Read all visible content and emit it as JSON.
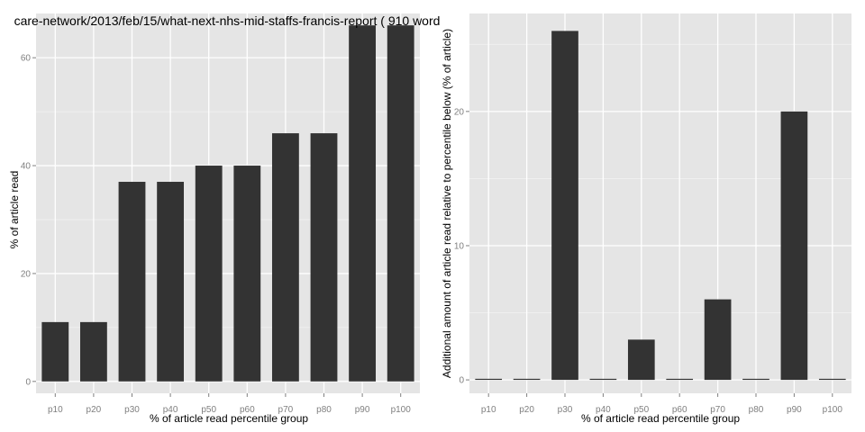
{
  "colors": {
    "panel_bg": "#e5e5e5",
    "grid_major": "#ffffff",
    "grid_minor": "#f2f2f2",
    "bar": "#333333",
    "tick_text": "#7f7f7f",
    "label_text": "#000000"
  },
  "chart_data": [
    {
      "type": "bar",
      "title": "care-network/2013/feb/15/what-next-nhs-mid-staffs-francis-report ( 910 word",
      "xlabel": "% of article read percentile group",
      "ylabel": "% of article read",
      "categories": [
        "p10",
        "p20",
        "p30",
        "p40",
        "p50",
        "p60",
        "p70",
        "p80",
        "p90",
        "p100"
      ],
      "values": [
        11,
        11,
        37,
        37,
        40,
        40,
        46,
        46,
        66,
        66
      ],
      "ylim": [
        -2.2,
        68.2
      ],
      "yticks": [
        0,
        20,
        40,
        60
      ],
      "grid": true,
      "legend": "none"
    },
    {
      "type": "bar",
      "title": "",
      "xlabel": "% of article read percentile group",
      "ylabel": "Additional amount of article read relative to percentile below (% of article)",
      "categories": [
        "p10",
        "p20",
        "p30",
        "p40",
        "p50",
        "p60",
        "p70",
        "p80",
        "p90",
        "p100"
      ],
      "values": [
        0,
        0,
        26,
        0,
        3,
        0,
        6,
        0,
        20,
        0
      ],
      "ylim": [
        -1.0,
        27.3
      ],
      "yticks": [
        0,
        10,
        20
      ],
      "grid": true,
      "legend": "none"
    }
  ]
}
